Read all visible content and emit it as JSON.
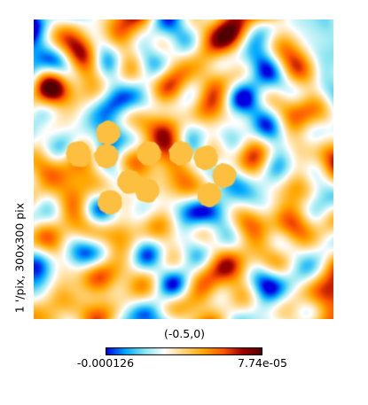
{
  "figure": {
    "side_label": "1 '/pix,  300x300 pix",
    "center_label": "(-0.5,0)",
    "colorbar": {
      "min_label": "-0.000126",
      "max_label": "7.74e-05",
      "colormap": [
        "#0000e0",
        "#00a8ff",
        "#8ce6f0",
        "#ffffff",
        "#ffd47c",
        "#ffa800",
        "#ff5a00",
        "#a00000",
        "#500000"
      ]
    },
    "mask_color": "#fdbf3f",
    "mask_count": 12,
    "pixels": "300x300"
  }
}
